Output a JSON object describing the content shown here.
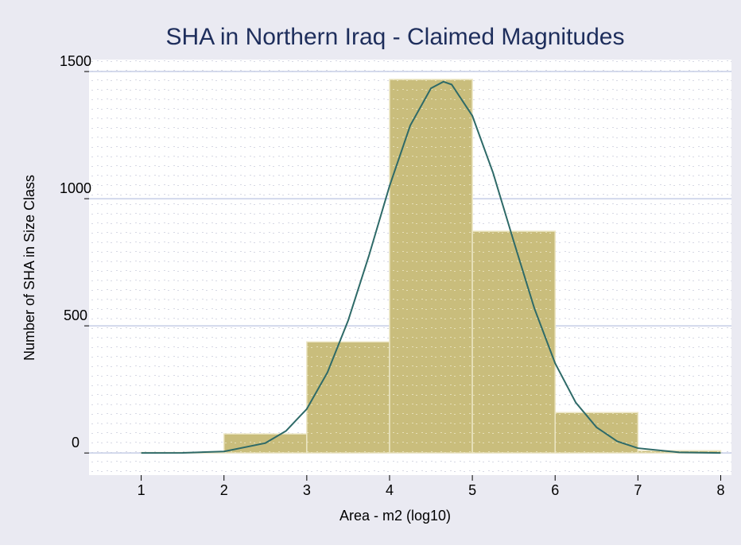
{
  "chart_data": {
    "type": "histogram",
    "title": "SHA in Northern Iraq - Claimed Magnitudes",
    "x_label": "Area - m2 (log10)",
    "y_label": "Number of SHA in Size Class",
    "bins": [
      1,
      2,
      3,
      4,
      5,
      6,
      7,
      8
    ],
    "values": [
      2,
      75,
      437,
      1469,
      872,
      159,
      9
    ],
    "color": "#c9bd7c",
    "curve": {
      "color": "#2e6a68",
      "x": [
        1,
        1.5,
        2,
        2.5,
        2.75,
        3,
        3.25,
        3.5,
        3.75,
        4,
        4.25,
        4.5,
        4.65,
        4.75,
        5,
        5.25,
        5.5,
        5.75,
        6,
        6.25,
        6.5,
        6.75,
        7,
        7.5,
        8
      ],
      "values": [
        0,
        0.6,
        6,
        39,
        87,
        173,
        317,
        521,
        775,
        1050,
        1288,
        1434,
        1460,
        1449,
        1326,
        1102,
        832,
        568,
        353,
        198,
        101,
        46,
        19,
        2.5,
        0.2
      ]
    },
    "xlim": [
      0.37,
      8.13
    ],
    "ylim": [
      -87,
      1547
    ],
    "xticks": [
      1,
      2,
      3,
      4,
      5,
      6,
      7,
      8
    ],
    "yticks": [
      0,
      500,
      1000,
      1500
    ],
    "grid": true
  }
}
